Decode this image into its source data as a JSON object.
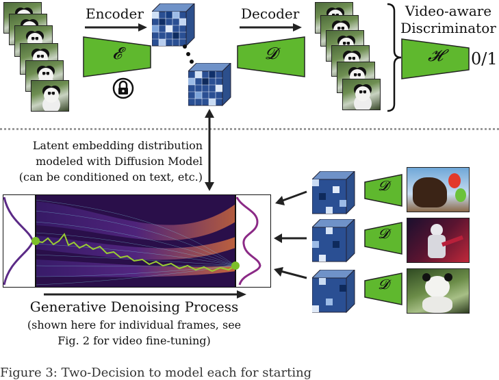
{
  "top": {
    "encoder_label": "Encoder",
    "decoder_label": "Decoder",
    "encoder_symbol": "𝓔",
    "decoder_symbol": "𝓓",
    "discriminator_symbol": "𝓗",
    "discriminator_title_line1": "Video-aware",
    "discriminator_title_line2": "Discriminator",
    "discriminator_output": "0/1"
  },
  "middle": {
    "latent_line1": "Latent embedding distribution",
    "latent_line2": "modeled with Diffusion Model",
    "latent_line3": "(can be conditioned on text, etc.)"
  },
  "bottom": {
    "process_title": "Generative Denoising Process",
    "process_sub1": "(shown here for individual frames, see",
    "process_sub2": "Fig. 2 for video fine-tuning)",
    "decoder_symbol": "𝓓"
  },
  "caption": "Figure 3:  Two-Decision to model each for starting",
  "colors": {
    "module_green": "#5fb82e",
    "cube_dark": "#1d3f7a",
    "cube_light": "#a9c6ea",
    "flow_bg": "#2a0f4a",
    "flow_line": "#7fd7e6",
    "path": "#9acd32"
  },
  "icons": [
    "lock-icon",
    "arrow-right-icon",
    "double-arrow-icon",
    "arrow-left-icon"
  ]
}
